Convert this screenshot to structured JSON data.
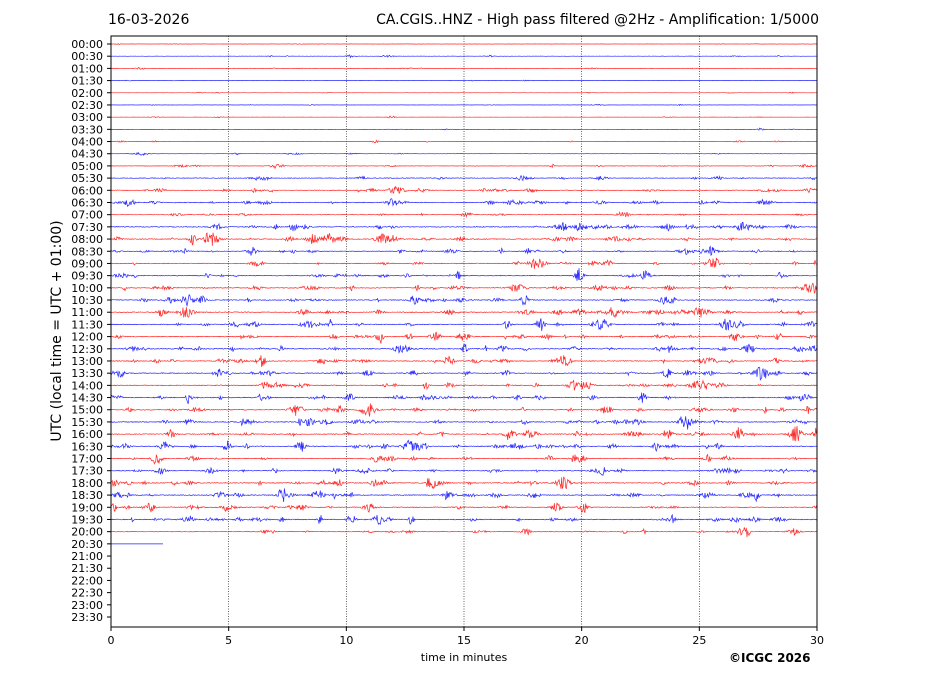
{
  "chart_data": {
    "type": "line",
    "date": "16-03-2026",
    "title": "CA.CGIS..HNZ - High pass filtered @2Hz - Amplification: 1/5000",
    "xlabel": "time in minutes",
    "ylabel": "UTC (local time = UTC + 01:00)",
    "xlim": [
      0,
      30
    ],
    "xticks": [
      "0",
      "5",
      "10",
      "15",
      "20",
      "25",
      "30"
    ],
    "row_labels": [
      "00:00",
      "00:30",
      "01:00",
      "01:30",
      "02:00",
      "02:30",
      "03:00",
      "03:30",
      "04:00",
      "04:30",
      "05:00",
      "05:30",
      "06:00",
      "06:30",
      "07:00",
      "07:30",
      "08:00",
      "08:30",
      "09:00",
      "09:30",
      "10:00",
      "10:30",
      "11:00",
      "11:30",
      "12:00",
      "12:30",
      "13:00",
      "13:30",
      "14:00",
      "14:30",
      "15:00",
      "15:30",
      "16:00",
      "16:30",
      "17:00",
      "17:30",
      "18:00",
      "18:30",
      "19:00",
      "19:30",
      "20:00",
      "20:30",
      "21:00",
      "21:30",
      "22:00",
      "22:30",
      "23:00",
      "23:30"
    ],
    "trace_colors": [
      "#ff0000",
      "#0000ff"
    ],
    "rows_with_data": 42,
    "last_row_end_minute": 2.2,
    "activity_level": [
      0.2,
      0.3,
      0.3,
      0.2,
      0.2,
      0.2,
      0.2,
      0.2,
      0.3,
      0.3,
      0.4,
      0.6,
      0.7,
      0.8,
      0.5,
      0.9,
      0.9,
      0.8,
      0.8,
      0.8,
      0.9,
      0.9,
      0.9,
      0.9,
      0.9,
      1.0,
      0.9,
      0.9,
      0.9,
      0.9,
      0.9,
      0.9,
      0.9,
      0.9,
      0.8,
      0.8,
      0.9,
      0.9,
      0.9,
      0.9,
      0.6,
      0.1
    ],
    "gridlines": "vertical dotted at each 5 minutes"
  },
  "footer": {
    "copyright": "©ICGC 2026"
  }
}
